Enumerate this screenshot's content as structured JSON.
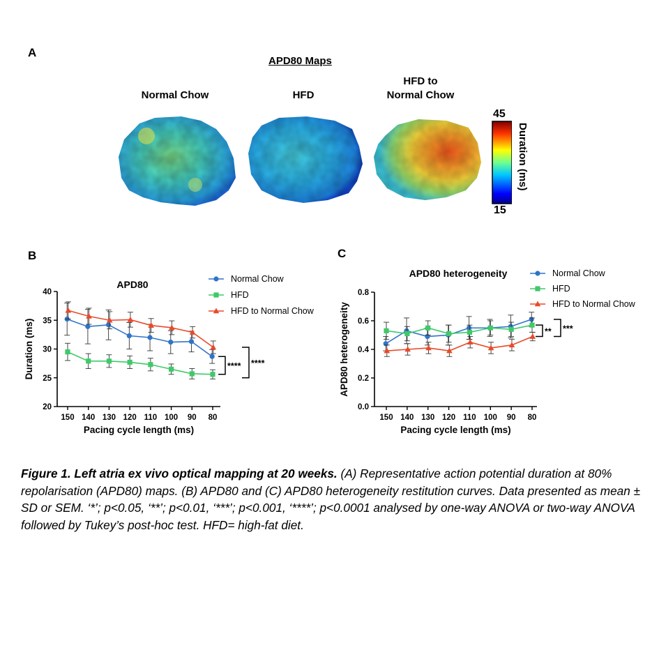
{
  "panel_a": {
    "letter": "A",
    "title": "APD80 Maps",
    "conditions": [
      {
        "label": "Normal Chow"
      },
      {
        "label": "HFD"
      },
      {
        "label_line1": "HFD to",
        "label_line2": "Normal Chow"
      }
    ],
    "colorbar": {
      "max": "45",
      "min": "15",
      "label": "Duration (ms)"
    }
  },
  "chart_data": [
    {
      "panel": "B",
      "type": "line",
      "title": "APD80",
      "xlabel": "Pacing cycle length (ms)",
      "ylabel": "Duration (ms)",
      "categories": [
        "150",
        "140",
        "130",
        "120",
        "110",
        "100",
        "90",
        "80"
      ],
      "ylim": [
        20,
        40
      ],
      "yticks": [
        "20",
        "25",
        "30",
        "35",
        "40"
      ],
      "legend_position": "top-right",
      "series": [
        {
          "name": "Normal Chow",
          "color": "#2f74c8",
          "marker": "circle",
          "values": [
            35.2,
            33.9,
            34.2,
            32.3,
            32.0,
            31.2,
            31.3,
            28.7
          ],
          "errors": [
            2.8,
            3.0,
            2.6,
            2.3,
            2.3,
            2.0,
            1.8,
            1.2
          ]
        },
        {
          "name": "HFD",
          "color": "#3fc96a",
          "marker": "square",
          "values": [
            29.5,
            27.9,
            27.9,
            27.7,
            27.3,
            26.5,
            25.7,
            25.6
          ],
          "errors": [
            1.5,
            1.3,
            1.1,
            1.1,
            1.1,
            0.9,
            0.9,
            0.8
          ]
        },
        {
          "name": "HFD to Normal Chow",
          "color": "#e84a2a",
          "marker": "triangle",
          "values": [
            36.7,
            35.7,
            35.0,
            35.1,
            34.1,
            33.7,
            32.9,
            30.3
          ],
          "errors": [
            1.5,
            1.4,
            1.5,
            1.3,
            1.2,
            1.2,
            1.0,
            1.1
          ]
        }
      ],
      "significance": [
        "****",
        "****"
      ]
    },
    {
      "panel": "C",
      "type": "line",
      "title": "APD80 heterogeneity",
      "xlabel": "Pacing cycle length (ms)",
      "ylabel": "APD80 heterogeneity",
      "categories": [
        "150",
        "140",
        "130",
        "120",
        "110",
        "100",
        "90",
        "80"
      ],
      "ylim": [
        0,
        0.8
      ],
      "yticks": [
        "0.0",
        "0.2",
        "0.4",
        "0.6",
        "0.8"
      ],
      "legend_position": "top-right",
      "series": [
        {
          "name": "Normal Chow",
          "color": "#2f74c8",
          "marker": "circle",
          "values": [
            0.44,
            0.53,
            0.49,
            0.5,
            0.55,
            0.55,
            0.56,
            0.61
          ],
          "errors": [
            0.05,
            0.09,
            0.06,
            0.07,
            0.08,
            0.06,
            0.08,
            0.05
          ]
        },
        {
          "name": "HFD",
          "color": "#3fc96a",
          "marker": "square",
          "values": [
            0.53,
            0.51,
            0.55,
            0.51,
            0.52,
            0.55,
            0.54,
            0.57
          ],
          "errors": [
            0.06,
            0.05,
            0.05,
            0.06,
            0.05,
            0.05,
            0.05,
            0.05
          ]
        },
        {
          "name": "HFD to Normal Chow",
          "color": "#e84a2a",
          "marker": "triangle",
          "values": [
            0.39,
            0.4,
            0.41,
            0.39,
            0.45,
            0.41,
            0.43,
            0.49
          ],
          "errors": [
            0.04,
            0.04,
            0.04,
            0.04,
            0.04,
            0.04,
            0.04,
            0.03
          ]
        }
      ],
      "significance": [
        "***",
        "**"
      ]
    }
  ],
  "panel_b": {
    "letter": "B"
  },
  "panel_c": {
    "letter": "C"
  },
  "caption": {
    "bold": "Figure 1. Left atria ex vivo optical mapping at 20 weeks.",
    "text": " (A) Representative action potential duration at 80% repolarisation (APD80) maps. (B) APD80 and (C) APD80 heterogeneity restitution curves. Data presented as mean ± SD or SEM. ‘*’; p<0.05, ‘**’; p<0.01, ‘***’; p<0.001, ‘****’; p<0.0001 analysed by one-way ANOVA  or two-way ANOVA followed by Tukey’s post-hoc test. HFD= high-fat diet."
  }
}
